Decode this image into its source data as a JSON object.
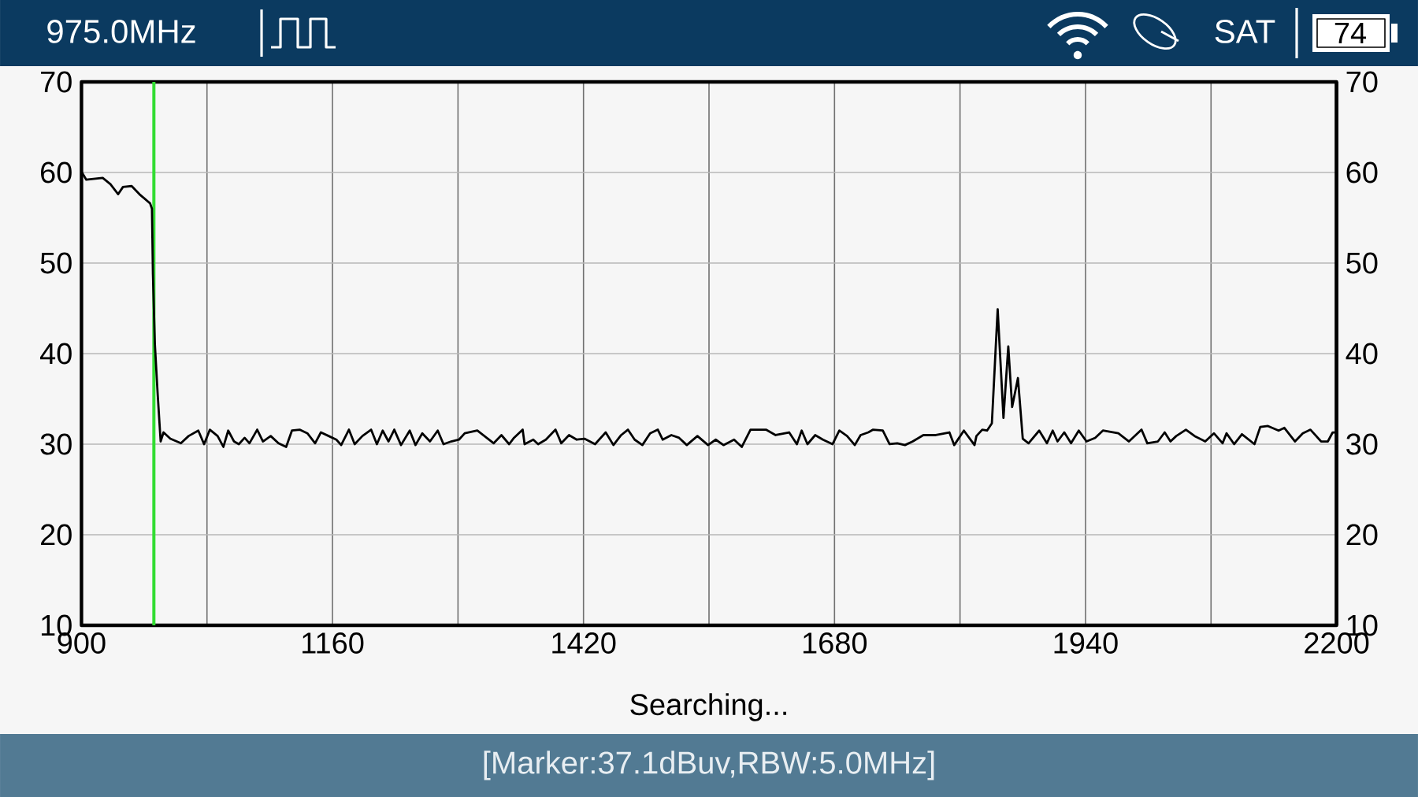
{
  "chart_data": {
    "type": "line",
    "annotations": [
      "975.0MHz",
      "SAT",
      "74",
      "Searching...",
      "[Marker:37.1dBuv,RBW:5.0MHz]"
    ],
    "x": [
      900,
      905,
      922,
      930,
      938,
      943,
      952,
      960,
      971,
      973,
      974,
      976,
      979,
      982,
      985,
      992,
      1003,
      1011,
      1021,
      1027,
      1033,
      1041,
      1047,
      1052,
      1058,
      1063,
      1069,
      1074,
      1082,
      1088,
      1096,
      1104,
      1112,
      1118,
      1126,
      1134,
      1142,
      1148,
      1156,
      1164,
      1169,
      1177,
      1183,
      1191,
      1200,
      1206,
      1212,
      1218,
      1224,
      1231,
      1240,
      1246,
      1253,
      1261,
      1269,
      1275,
      1283,
      1291,
      1297,
      1310,
      1321,
      1327,
      1335,
      1343,
      1348,
      1357,
      1359,
      1368,
      1373,
      1381,
      1391,
      1397,
      1405,
      1413,
      1421,
      1432,
      1443,
      1451,
      1459,
      1466,
      1473,
      1481,
      1489,
      1497,
      1502,
      1511,
      1519,
      1527,
      1538,
      1549,
      1557,
      1565,
      1576,
      1584,
      1593,
      1609,
      1619,
      1633,
      1641,
      1646,
      1652,
      1660,
      1668,
      1678,
      1685,
      1693,
      1701,
      1707,
      1715,
      1720,
      1730,
      1737,
      1745,
      1753,
      1761,
      1772,
      1785,
      1799,
      1804,
      1814,
      1825,
      1827,
      1833,
      1838,
      1843,
      1849,
      1855,
      1860,
      1864,
      1870,
      1875,
      1881,
      1892,
      1900,
      1906,
      1911,
      1918,
      1925,
      1933,
      1941,
      1950,
      1958,
      1974,
      1985,
      1998,
      2004,
      2015,
      2022,
      2028,
      2034,
      2044,
      2053,
      2064,
      2073,
      2082,
      2086,
      2094,
      2102,
      2115,
      2121,
      2129,
      2140,
      2146,
      2157,
      2165,
      2173,
      2184,
      2191,
      2196,
      2200
    ],
    "values": [
      60.1,
      59.2,
      59.4,
      58.7,
      57.6,
      58.4,
      58.5,
      57.6,
      56.6,
      56.0,
      48.8,
      41.1,
      35.4,
      30.3,
      31.3,
      30.6,
      30.1,
      30.9,
      31.5,
      30.0,
      31.6,
      30.9,
      29.7,
      31.5,
      30.3,
      30.0,
      30.7,
      30.1,
      31.6,
      30.3,
      30.9,
      30.1,
      29.7,
      31.5,
      31.6,
      31.2,
      30.1,
      31.3,
      30.9,
      30.5,
      29.9,
      31.6,
      30.0,
      30.9,
      31.6,
      30.0,
      31.5,
      30.3,
      31.6,
      29.9,
      31.5,
      29.9,
      31.2,
      30.3,
      31.5,
      30.0,
      30.3,
      30.5,
      31.2,
      31.5,
      30.6,
      30.1,
      31.0,
      30.0,
      30.7,
      31.6,
      30.0,
      30.5,
      30.0,
      30.5,
      31.6,
      30.1,
      31.0,
      30.5,
      30.6,
      30.0,
      31.3,
      29.9,
      31.0,
      31.6,
      30.5,
      29.9,
      31.2,
      31.6,
      30.5,
      31.0,
      30.7,
      29.9,
      30.9,
      29.9,
      30.5,
      29.9,
      30.5,
      29.7,
      31.6,
      31.6,
      31.0,
      31.3,
      30.0,
      31.5,
      30.0,
      31.0,
      30.5,
      30.0,
      31.5,
      30.9,
      29.9,
      31.0,
      31.3,
      31.6,
      31.5,
      30.0,
      30.1,
      29.9,
      30.3,
      31.0,
      31.0,
      31.3,
      29.9,
      31.5,
      29.9,
      30.9,
      31.6,
      31.5,
      32.3,
      44.9,
      32.9,
      40.8,
      34.1,
      37.3,
      30.6,
      30.1,
      31.5,
      30.1,
      31.5,
      30.3,
      31.3,
      30.1,
      31.5,
      30.3,
      30.7,
      31.5,
      31.2,
      30.3,
      31.6,
      30.1,
      30.3,
      31.3,
      30.3,
      30.9,
      31.6,
      30.9,
      30.3,
      31.2,
      30.1,
      31.2,
      30.0,
      31.1,
      30.0,
      31.9,
      32.0,
      31.5,
      31.8,
      30.3,
      31.2,
      31.6,
      30.3,
      30.3,
      31.3,
      31.3
    ],
    "color": "#000000",
    "xlim": [
      900,
      2200
    ],
    "xticks": [
      900,
      {
        "value": 1030,
        "label": null
      },
      1160,
      {
        "value": 1290,
        "label": null
      },
      1420,
      {
        "value": 1550,
        "label": null
      },
      1680,
      {
        "value": 1810,
        "label": null
      },
      1940,
      {
        "value": 2070,
        "label": null
      },
      2200
    ],
    "ylim": [
      10,
      70
    ],
    "yticks": [
      10,
      20,
      30,
      40,
      50,
      60,
      70
    ],
    "y2lim": [
      10,
      70
    ],
    "y2ticks": [
      10,
      20,
      30,
      40,
      50,
      60,
      70
    ],
    "grid": true,
    "ref_lines": [
      {
        "axis": "x",
        "value": 975,
        "color": "#33dd33"
      }
    ]
  }
}
